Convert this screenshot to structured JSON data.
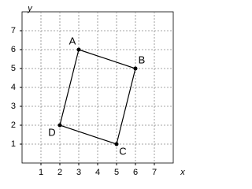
{
  "chart_data": {
    "type": "polygon",
    "x_label": "x",
    "y_label": "y",
    "point_labels": [
      "A",
      "B",
      "C",
      "D"
    ],
    "x": [
      3,
      6,
      5,
      2
    ],
    "y": [
      6,
      5,
      1,
      2
    ],
    "color": "#000000",
    "xlim": [
      0,
      8
    ],
    "ylim": [
      0,
      8
    ],
    "xticks": [
      1,
      2,
      3,
      4,
      5,
      6,
      7
    ],
    "yticks": [
      1,
      2,
      3,
      4,
      5,
      6,
      7
    ],
    "grid": true
  }
}
